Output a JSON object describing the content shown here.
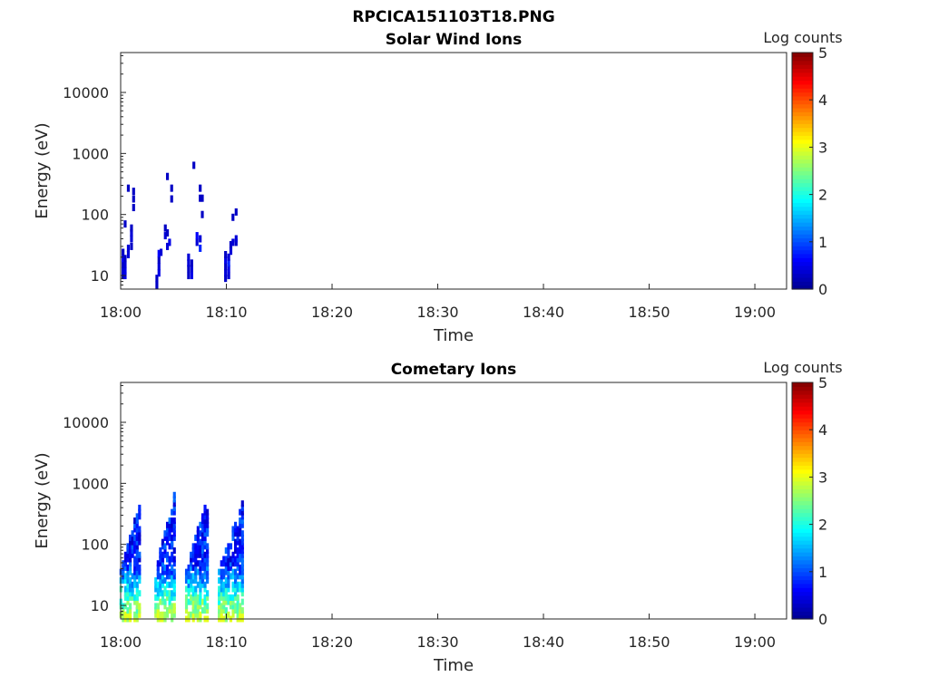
{
  "figure_title": "RPCICA151103T18.PNG",
  "colorscale": [
    "#00008f",
    "#0000ff",
    "#0080ff",
    "#00ffff",
    "#80ff80",
    "#ffff00",
    "#ff8000",
    "#ff0000",
    "#800000"
  ],
  "chart_data": [
    {
      "type": "heatmap",
      "title": "Solar Wind Ions",
      "xlabel": "Time",
      "ylabel": "Energy (eV)",
      "x_ticks": [
        "18:00",
        "18:10",
        "18:20",
        "18:30",
        "18:40",
        "18:50",
        "19:00"
      ],
      "y_ticks": [
        "10",
        "100",
        "1000",
        "10000"
      ],
      "y_scale": "log",
      "ylim": [
        6,
        45000
      ],
      "xlim": [
        "18:00",
        "19:03"
      ],
      "colorbar": {
        "label": "Log counts",
        "ticks": [
          "0",
          "1",
          "2",
          "3",
          "4",
          "5"
        ],
        "range": [
          0,
          5
        ]
      },
      "points": [
        {
          "t": "18:00.2",
          "e": 10,
          "v": 0.3
        },
        {
          "t": "18:00.2",
          "e": 12,
          "v": 0.4
        },
        {
          "t": "18:00.2",
          "e": 15,
          "v": 0.3
        },
        {
          "t": "18:00.2",
          "e": 19,
          "v": 0.6
        },
        {
          "t": "18:00.2",
          "e": 24,
          "v": 0.3
        },
        {
          "t": "18:00.4",
          "e": 10,
          "v": 0.5
        },
        {
          "t": "18:00.4",
          "e": 12,
          "v": 0.5
        },
        {
          "t": "18:00.4",
          "e": 15,
          "v": 0.4
        },
        {
          "t": "18:00.4",
          "e": 19,
          "v": 0.3
        },
        {
          "t": "18:00.4",
          "e": 70,
          "v": 0.3
        },
        {
          "t": "18:00.7",
          "e": 22,
          "v": 0.4
        },
        {
          "t": "18:00.7",
          "e": 28,
          "v": 0.4
        },
        {
          "t": "18:00.7",
          "e": 270,
          "v": 0.3
        },
        {
          "t": "18:01.0",
          "e": 30,
          "v": 0.3
        },
        {
          "t": "18:01.0",
          "e": 40,
          "v": 0.4
        },
        {
          "t": "18:01.0",
          "e": 50,
          "v": 0.4
        },
        {
          "t": "18:01.0",
          "e": 60,
          "v": 0.3
        },
        {
          "t": "18:01.2",
          "e": 130,
          "v": 0.3
        },
        {
          "t": "18:01.2",
          "e": 180,
          "v": 0.3
        },
        {
          "t": "18:01.2",
          "e": 240,
          "v": 0.3
        },
        {
          "t": "18:03.4",
          "e": 7,
          "v": 0.3
        },
        {
          "t": "18:03.4",
          "e": 9,
          "v": 0.3
        },
        {
          "t": "18:03.6",
          "e": 11,
          "v": 0.5
        },
        {
          "t": "18:03.6",
          "e": 14,
          "v": 0.4
        },
        {
          "t": "18:03.6",
          "e": 18,
          "v": 0.3
        },
        {
          "t": "18:03.6",
          "e": 23,
          "v": 0.6
        },
        {
          "t": "18:03.8",
          "e": 24,
          "v": 0.4
        },
        {
          "t": "18:04.2",
          "e": 45,
          "v": 0.4
        },
        {
          "t": "18:04.2",
          "e": 60,
          "v": 0.3
        },
        {
          "t": "18:04.4",
          "e": 30,
          "v": 0.4
        },
        {
          "t": "18:04.4",
          "e": 50,
          "v": 0.3
        },
        {
          "t": "18:04.4",
          "e": 420,
          "v": 0.3
        },
        {
          "t": "18:04.6",
          "e": 35,
          "v": 0.5
        },
        {
          "t": "18:04.8",
          "e": 180,
          "v": 0.3
        },
        {
          "t": "18:04.8",
          "e": 270,
          "v": 0.3
        },
        {
          "t": "18:06.4",
          "e": 10,
          "v": 0.3
        },
        {
          "t": "18:06.4",
          "e": 13,
          "v": 0.3
        },
        {
          "t": "18:06.4",
          "e": 16,
          "v": 0.4
        },
        {
          "t": "18:06.4",
          "e": 20,
          "v": 0.4
        },
        {
          "t": "18:06.7",
          "e": 10,
          "v": 0.5
        },
        {
          "t": "18:06.7",
          "e": 13,
          "v": 0.4
        },
        {
          "t": "18:06.7",
          "e": 16,
          "v": 0.3
        },
        {
          "t": "18:06.9",
          "e": 640,
          "v": 0.3
        },
        {
          "t": "18:07.2",
          "e": 35,
          "v": 0.4
        },
        {
          "t": "18:07.2",
          "e": 45,
          "v": 0.6
        },
        {
          "t": "18:07.5",
          "e": 28,
          "v": 0.8
        },
        {
          "t": "18:07.5",
          "e": 40,
          "v": 0.4
        },
        {
          "t": "18:07.5",
          "e": 270,
          "v": 0.3
        },
        {
          "t": "18:07.5",
          "e": 185,
          "v": 0.3
        },
        {
          "t": "18:07.7",
          "e": 185,
          "v": 0.3
        },
        {
          "t": "18:07.7",
          "e": 100,
          "v": 0.3
        },
        {
          "t": "18:09.9",
          "e": 9,
          "v": 0.3
        },
        {
          "t": "18:09.9",
          "e": 11,
          "v": 0.4
        },
        {
          "t": "18:09.9",
          "e": 14,
          "v": 0.3
        },
        {
          "t": "18:09.9",
          "e": 18,
          "v": 0.5
        },
        {
          "t": "18:09.9",
          "e": 22,
          "v": 0.3
        },
        {
          "t": "18:10.2",
          "e": 10,
          "v": 0.4
        },
        {
          "t": "18:10.2",
          "e": 13,
          "v": 0.5
        },
        {
          "t": "18:10.2",
          "e": 16,
          "v": 0.8
        },
        {
          "t": "18:10.2",
          "e": 20,
          "v": 0.4
        },
        {
          "t": "18:10.4",
          "e": 25,
          "v": 0.4
        },
        {
          "t": "18:10.4",
          "e": 32,
          "v": 0.3
        },
        {
          "t": "18:10.6",
          "e": 35,
          "v": 0.4
        },
        {
          "t": "18:10.6",
          "e": 90,
          "v": 0.3
        },
        {
          "t": "18:10.9",
          "e": 35,
          "v": 0.3
        },
        {
          "t": "18:10.9",
          "e": 40,
          "v": 0.4
        },
        {
          "t": "18:10.9",
          "e": 110,
          "v": 0.3
        }
      ]
    },
    {
      "type": "heatmap",
      "title": "Cometary Ions",
      "xlabel": "Time",
      "ylabel": "Energy (eV)",
      "x_ticks": [
        "18:00",
        "18:10",
        "18:20",
        "18:30",
        "18:40",
        "18:50",
        "19:00"
      ],
      "y_ticks": [
        "10",
        "100",
        "1000",
        "10000"
      ],
      "y_scale": "log",
      "ylim": [
        6,
        45000
      ],
      "xlim": [
        "18:00",
        "19:03"
      ],
      "colorbar": {
        "label": "Log counts",
        "ticks": [
          "0",
          "1",
          "2",
          "3",
          "4",
          "5"
        ],
        "range": [
          0,
          5
        ]
      },
      "bursts": [
        {
          "start": "18:00.0",
          "end": "18:02.0",
          "top": 450,
          "bottom": 6
        },
        {
          "start": "18:03.3",
          "end": "18:05.2",
          "top": 700,
          "bottom": 6
        },
        {
          "start": "18:06.2",
          "end": "18:08.4",
          "top": 620,
          "bottom": 6
        },
        {
          "start": "18:09.3",
          "end": "18:11.8",
          "top": 480,
          "bottom": 6
        }
      ]
    }
  ]
}
